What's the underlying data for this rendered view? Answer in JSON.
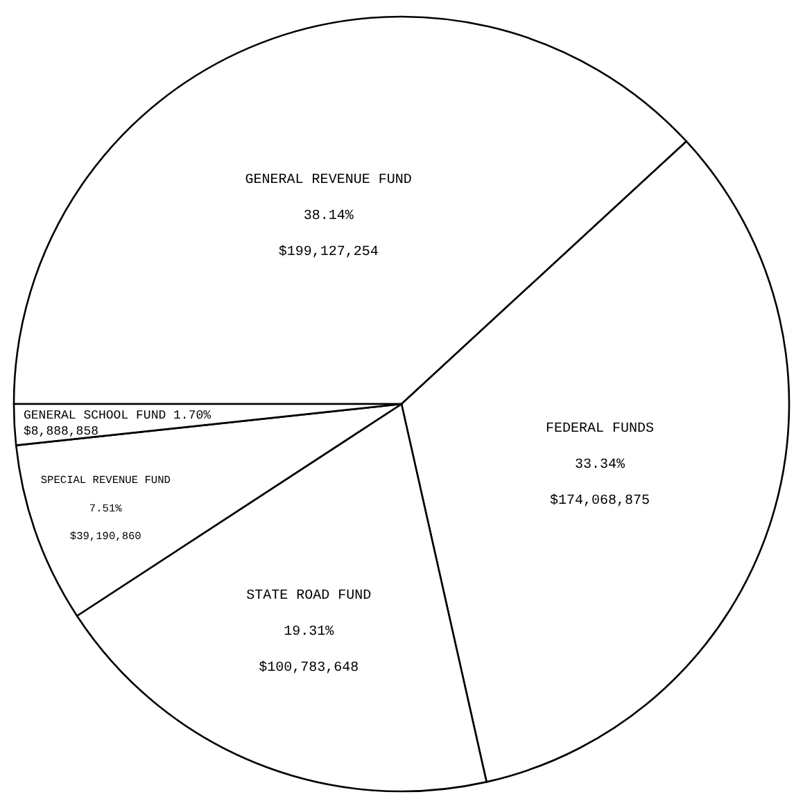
{
  "chart_data": {
    "type": "pie",
    "categories": [
      "GENERAL REVENUE FUND",
      "FEDERAL FUNDS",
      "STATE ROAD FUND",
      "SPECIAL REVENUE FUND",
      "GENERAL SCHOOL FUND"
    ],
    "values": [
      38.14,
      33.34,
      19.31,
      7.51,
      1.7
    ],
    "colors": [
      "#ffffff",
      "#ffffff",
      "#ffffff",
      "#ffffff",
      "#ffffff"
    ],
    "value_labels": [
      "38.14%\n$199,127,254",
      "33.34%\n$174,068,875",
      "19.31%\n$100,783,648",
      "7.51%\n$39,190,860",
      "1.70%\n$8,888,858"
    ],
    "legend": false
  }
}
